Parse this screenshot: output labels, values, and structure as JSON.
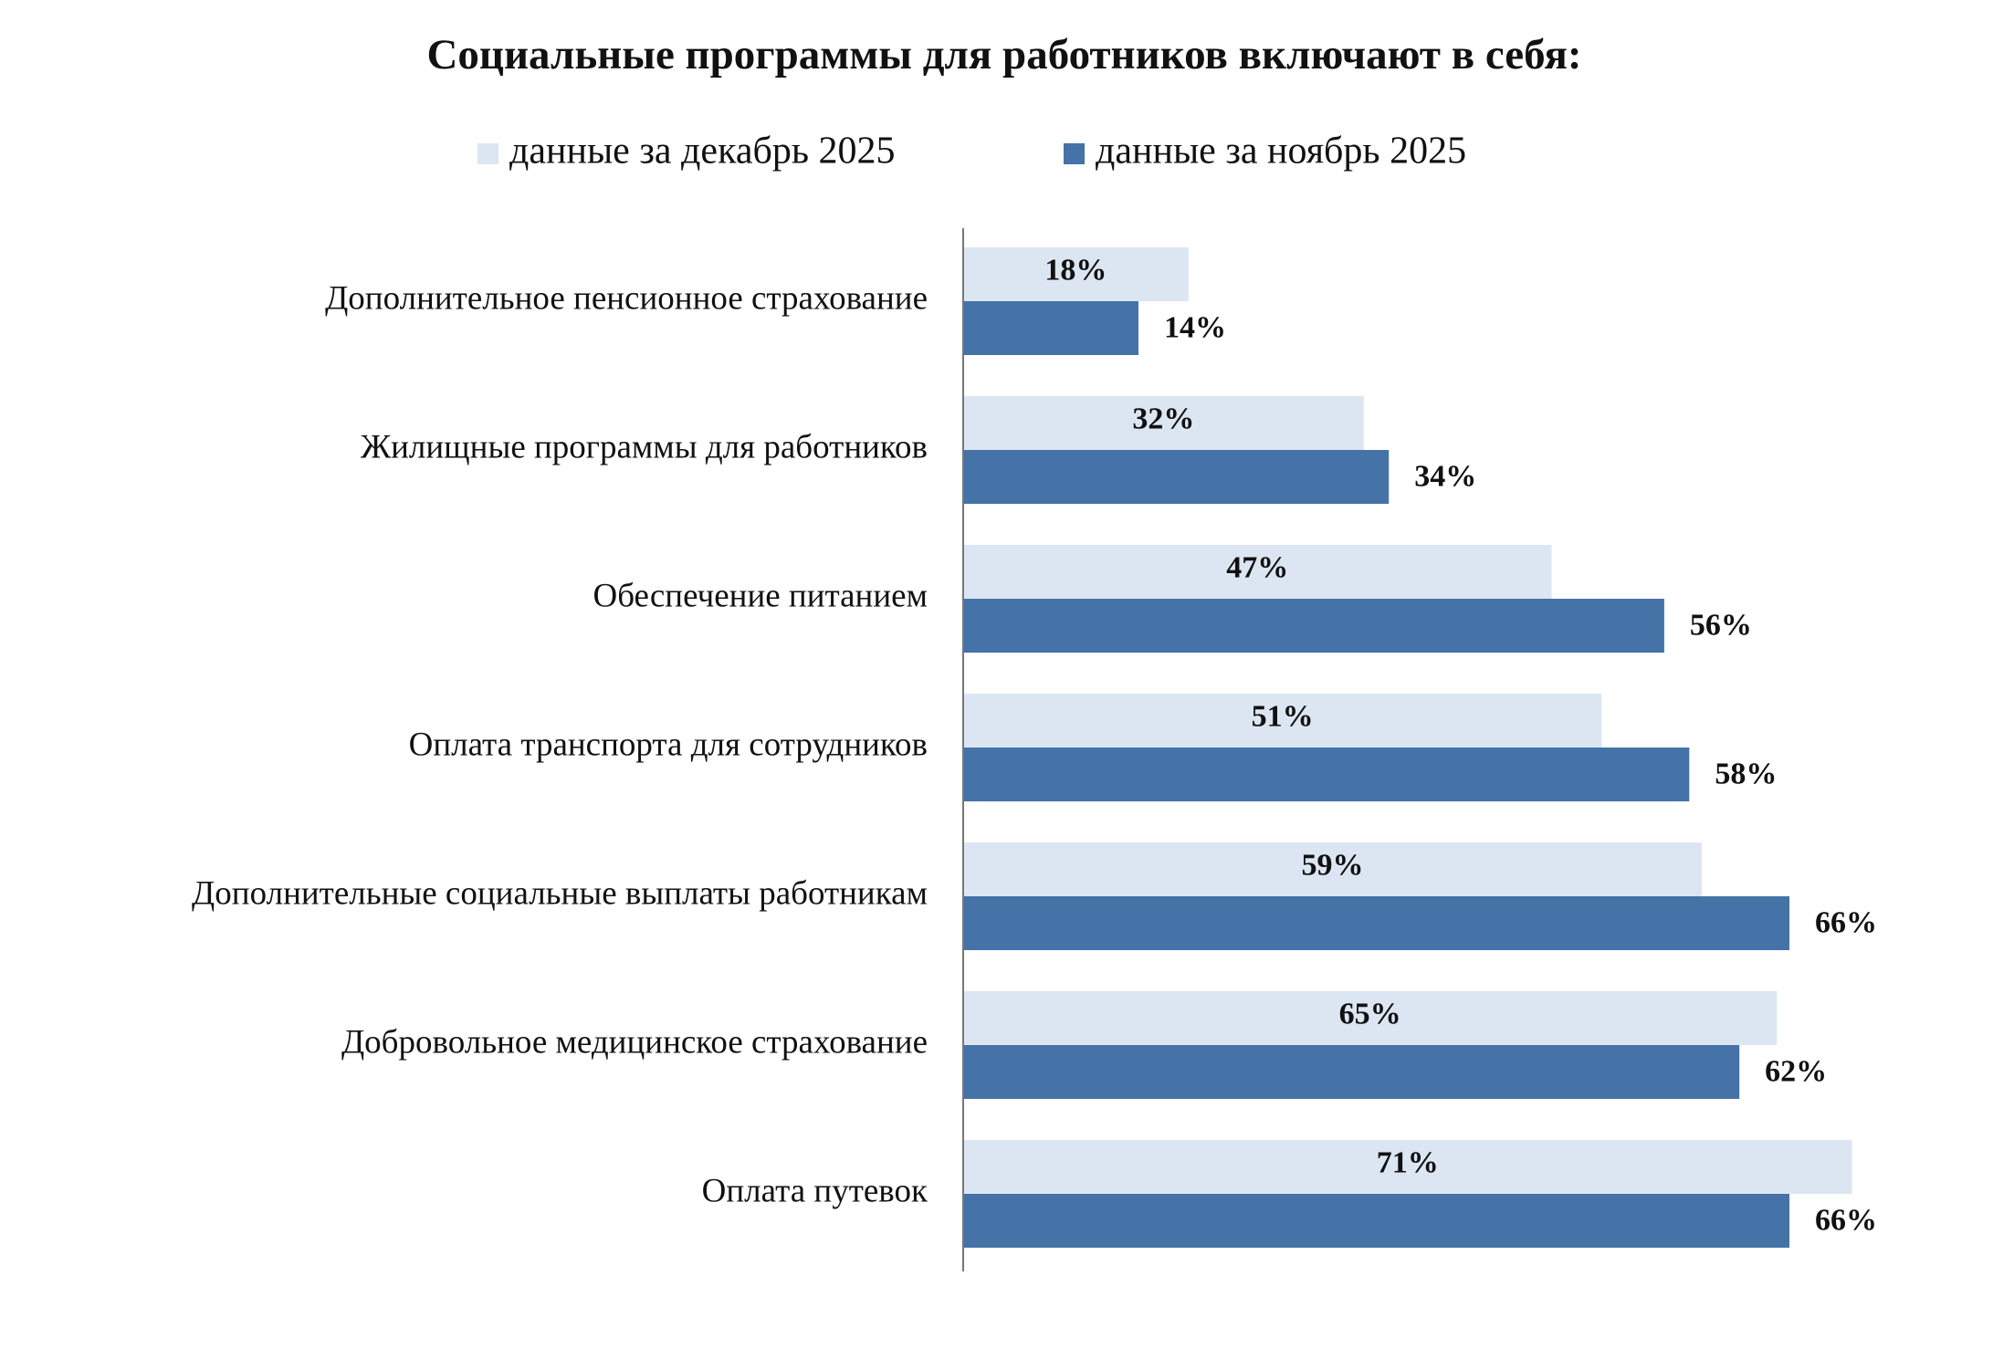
{
  "chart_data": {
    "type": "barh",
    "title": "Социальные программы для работников включают в себя:",
    "categories": [
      "Дополнительное пенсионное страхование",
      "Жилищные программы для работников",
      "Обеспечение питанием",
      "Оплата транспорта для сотрудников",
      "Дополнительные социальные выплаты работникам",
      "Добровольное медицинское страхование",
      "Оплата путевок"
    ],
    "series": [
      {
        "name": "данные за декабрь 2025",
        "color": "#dce6f2",
        "values": [
          18,
          32,
          47,
          51,
          59,
          65,
          71
        ],
        "value_labels": [
          "18%",
          "32%",
          "47%",
          "51%",
          "59%",
          "65%",
          "71%"
        ]
      },
      {
        "name": "данные за ноябрь 2025",
        "color": "#4572a7",
        "values": [
          14,
          34,
          56,
          58,
          66,
          62,
          66
        ],
        "value_labels": [
          "14%",
          "34%",
          "56%",
          "58%",
          "66%",
          "62%",
          "66%"
        ]
      }
    ],
    "xlim": [
      0,
      80
    ],
    "legend": "top"
  }
}
